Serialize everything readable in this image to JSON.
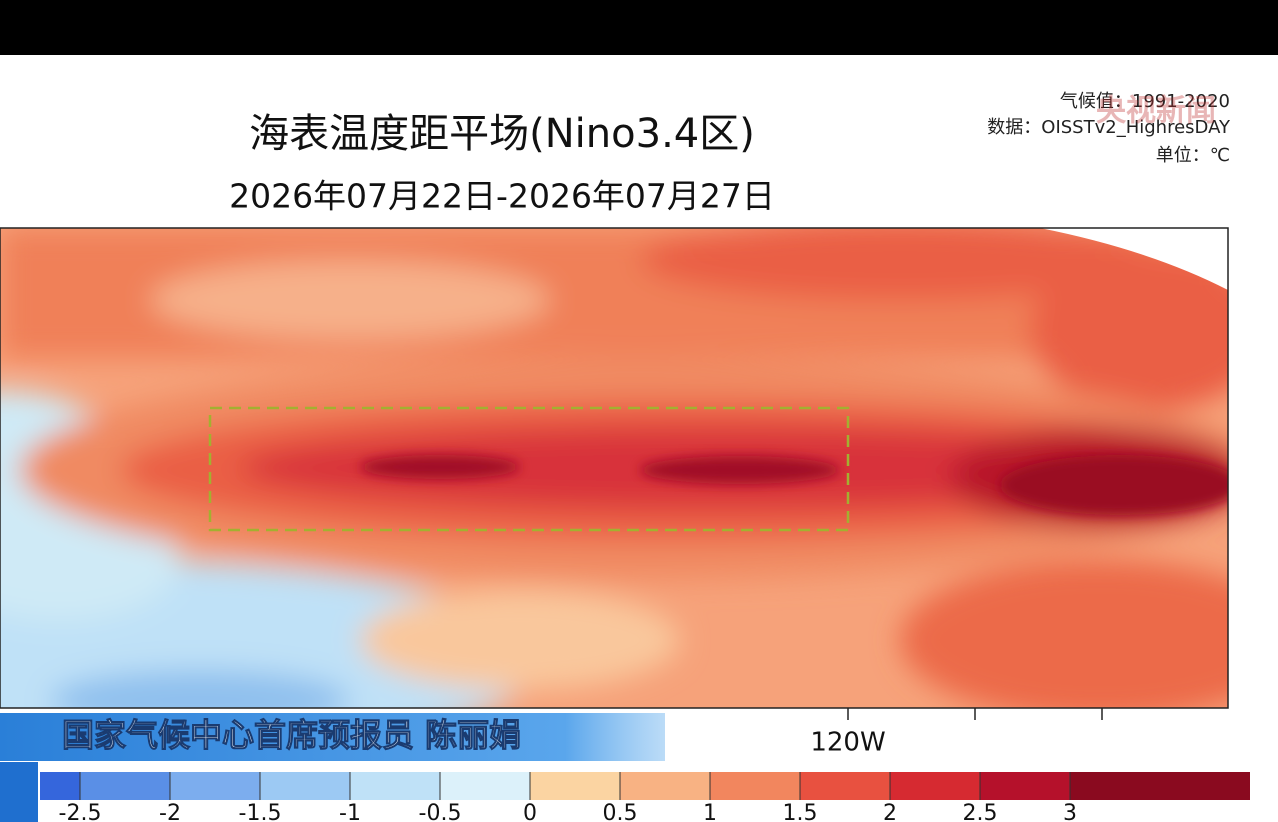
{
  "header": {
    "title": "海表温度距平场(Nino3.4区)",
    "subtitle": "2026年07月22日-2026年07月27日"
  },
  "meta": {
    "climatology": "气候值：1991-2020",
    "source": "数据：OISSTv2_HighresDAY",
    "unit": "单位：℃"
  },
  "watermark": "央视新闻",
  "map": {
    "lon_label": "120W"
  },
  "caption": "国家气候中心首席预报员 陈丽娟",
  "colorbar": {
    "ticks": [
      -2.5,
      -2,
      -1.5,
      -1,
      -0.5,
      0,
      0.5,
      1,
      1.5,
      2,
      2.5,
      3
    ],
    "colors": [
      "#3566dc",
      "#5a8fe6",
      "#7cadee",
      "#9cc9f3",
      "#bfe1f7",
      "#dcf1fa",
      "#fbd4a2",
      "#f8b283",
      "#f2865e",
      "#e85140",
      "#d62a31",
      "#b5112b",
      "#8a0a1f"
    ]
  }
}
